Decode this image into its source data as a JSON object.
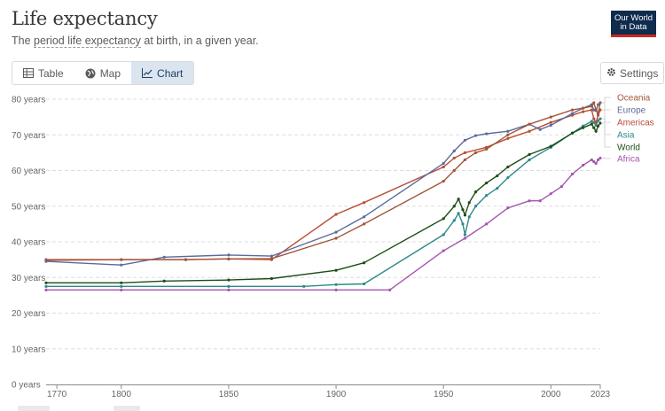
{
  "header": {
    "title": "Life expectancy",
    "subtitle_pre": "The ",
    "subtitle_link": "period life expectancy",
    "subtitle_post": " at birth, in a given year.",
    "logo_line1": "Our World",
    "logo_line2": "in Data"
  },
  "tabs": [
    {
      "label": "Table",
      "icon": "table-icon"
    },
    {
      "label": "Map",
      "icon": "globe-icon"
    },
    {
      "label": "Chart",
      "icon": "line-chart-icon",
      "active": true
    }
  ],
  "settings_label": "Settings",
  "colors": {
    "Oceania": "#a2563a",
    "Europe": "#5b6b9a",
    "Americas": "#b94d35",
    "Asia": "#2e8a8a",
    "World": "#1d4d16",
    "Africa": "#a556b0"
  },
  "chart_data": {
    "type": "line",
    "ylabel": "",
    "xlabel": "",
    "ylim": [
      0,
      80
    ],
    "xlim": [
      1765,
      2023
    ],
    "y_ticks": [
      "0 years",
      "10 years",
      "20 years",
      "30 years",
      "40 years",
      "50 years",
      "60 years",
      "70 years",
      "80 years"
    ],
    "x_ticks": [
      "1770",
      "1800",
      "1850",
      "1900",
      "1950",
      "2000",
      "2023"
    ],
    "grid": true,
    "legend_placement": "right",
    "series": [
      {
        "name": "Oceania",
        "points": [
          [
            1765,
            35
          ],
          [
            1800,
            35
          ],
          [
            1830,
            35
          ],
          [
            1850,
            35.2
          ],
          [
            1870,
            35.3
          ],
          [
            1900,
            41
          ],
          [
            1913,
            45
          ],
          [
            1950,
            57
          ],
          [
            1955,
            60
          ],
          [
            1960,
            63
          ],
          [
            1965,
            65
          ],
          [
            1970,
            66
          ],
          [
            1980,
            70
          ],
          [
            1990,
            73
          ],
          [
            2000,
            75
          ],
          [
            2010,
            77
          ],
          [
            2015,
            77.5
          ],
          [
            2019,
            78
          ],
          [
            2020,
            79
          ],
          [
            2021,
            77
          ],
          [
            2022,
            76
          ],
          [
            2023,
            79
          ]
        ]
      },
      {
        "name": "Europe",
        "points": [
          [
            1765,
            34.5
          ],
          [
            1800,
            33.5
          ],
          [
            1820,
            35.7
          ],
          [
            1850,
            36.3
          ],
          [
            1870,
            36
          ],
          [
            1900,
            42.7
          ],
          [
            1913,
            47
          ],
          [
            1950,
            62
          ],
          [
            1955,
            65.5
          ],
          [
            1960,
            68.5
          ],
          [
            1965,
            69.8
          ],
          [
            1970,
            70.3
          ],
          [
            1980,
            71
          ],
          [
            1990,
            73
          ],
          [
            1995,
            71.5
          ],
          [
            2000,
            72.7
          ],
          [
            2010,
            76
          ],
          [
            2015,
            77.5
          ],
          [
            2019,
            78.5
          ],
          [
            2020,
            77
          ],
          [
            2021,
            76.8
          ],
          [
            2022,
            78.5
          ],
          [
            2023,
            79
          ]
        ]
      },
      {
        "name": "Americas",
        "points": [
          [
            1765,
            34.8
          ],
          [
            1800,
            35
          ],
          [
            1830,
            35
          ],
          [
            1850,
            35.2
          ],
          [
            1870,
            35
          ],
          [
            1900,
            47.7
          ],
          [
            1913,
            51
          ],
          [
            1950,
            61
          ],
          [
            1955,
            63.5
          ],
          [
            1960,
            65
          ],
          [
            1970,
            66.5
          ],
          [
            1980,
            69
          ],
          [
            1990,
            71
          ],
          [
            2000,
            73.5
          ],
          [
            2010,
            75.5
          ],
          [
            2015,
            76.5
          ],
          [
            2019,
            77
          ],
          [
            2020,
            74.5
          ],
          [
            2021,
            73.5
          ],
          [
            2022,
            75.5
          ],
          [
            2023,
            77
          ]
        ]
      },
      {
        "name": "Asia",
        "points": [
          [
            1765,
            27.5
          ],
          [
            1800,
            27.5
          ],
          [
            1850,
            27.5
          ],
          [
            1885,
            27.5
          ],
          [
            1900,
            28
          ],
          [
            1913,
            28.2
          ],
          [
            1950,
            42
          ],
          [
            1955,
            46
          ],
          [
            1957,
            48
          ],
          [
            1959,
            45
          ],
          [
            1960,
            42
          ],
          [
            1962,
            47
          ],
          [
            1965,
            50
          ],
          [
            1970,
            53
          ],
          [
            1975,
            55
          ],
          [
            1980,
            58
          ],
          [
            1990,
            63
          ],
          [
            2000,
            66.5
          ],
          [
            2010,
            70.5
          ],
          [
            2015,
            72.5
          ],
          [
            2019,
            73.8
          ],
          [
            2020,
            73.5
          ],
          [
            2021,
            72.7
          ],
          [
            2022,
            74
          ],
          [
            2023,
            74.5
          ]
        ]
      },
      {
        "name": "World",
        "points": [
          [
            1765,
            28.5
          ],
          [
            1800,
            28.5
          ],
          [
            1820,
            29
          ],
          [
            1850,
            29.3
          ],
          [
            1870,
            29.7
          ],
          [
            1900,
            32
          ],
          [
            1913,
            34.1
          ],
          [
            1950,
            46.5
          ],
          [
            1955,
            50
          ],
          [
            1957,
            52
          ],
          [
            1959,
            49
          ],
          [
            1960,
            47.5
          ],
          [
            1962,
            51
          ],
          [
            1965,
            54
          ],
          [
            1970,
            56.5
          ],
          [
            1975,
            58.5
          ],
          [
            1980,
            61
          ],
          [
            1990,
            64.5
          ],
          [
            2000,
            66.8
          ],
          [
            2010,
            70.5
          ],
          [
            2015,
            72
          ],
          [
            2019,
            73
          ],
          [
            2020,
            72
          ],
          [
            2021,
            71
          ],
          [
            2022,
            72.5
          ],
          [
            2023,
            73.3
          ]
        ]
      },
      {
        "name": "Africa",
        "points": [
          [
            1765,
            26.5
          ],
          [
            1800,
            26.5
          ],
          [
            1850,
            26.5
          ],
          [
            1900,
            26.5
          ],
          [
            1925,
            26.5
          ],
          [
            1950,
            37.5
          ],
          [
            1960,
            41
          ],
          [
            1970,
            45
          ],
          [
            1980,
            49.5
          ],
          [
            1990,
            51.5
          ],
          [
            1995,
            51.5
          ],
          [
            2000,
            53.5
          ],
          [
            2005,
            55.5
          ],
          [
            2010,
            59
          ],
          [
            2015,
            61.5
          ],
          [
            2019,
            63
          ],
          [
            2020,
            62.5
          ],
          [
            2021,
            62
          ],
          [
            2022,
            63
          ],
          [
            2023,
            63.5
          ]
        ]
      }
    ]
  }
}
